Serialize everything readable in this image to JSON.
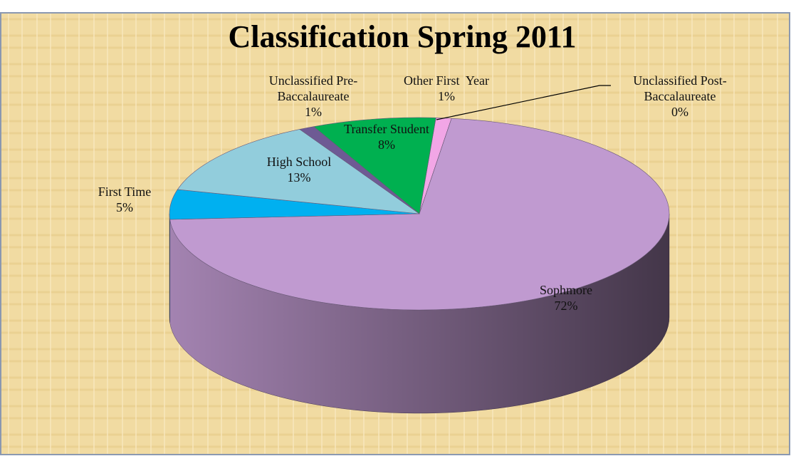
{
  "chart_data": {
    "type": "pie",
    "title": "Classification Spring 2011",
    "categories": [
      "Other First  Year",
      "Unclassified Post-Baccalaureate",
      "Sophmore",
      "First Time",
      "High School",
      "Unclassified Pre-Baccalaureate",
      "Transfer Student"
    ],
    "values": [
      1,
      0,
      72,
      5,
      13,
      1,
      8
    ],
    "value_labels": [
      "1%",
      "0%",
      "72%",
      "5%",
      "13%",
      "1%",
      "8%"
    ],
    "colors": [
      "#f2a6e6",
      "#d9d9d9",
      "#c09ad0",
      "#00b0f0",
      "#92cddc",
      "#6e5a94",
      "#00b050"
    ]
  }
}
